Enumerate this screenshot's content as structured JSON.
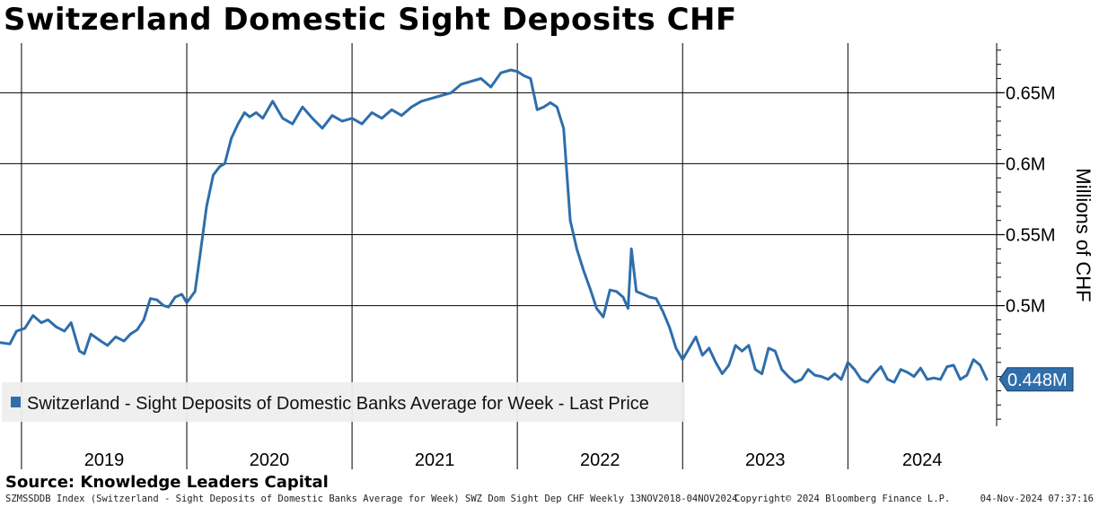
{
  "title": "Switzerland Domestic Sight Deposits CHF",
  "source": "Source: Knowledge Leaders Capital",
  "footer": {
    "left": "SZMSSDDB Index (Switzerland - Sight Deposits of Domestic Banks Average for Week) SWZ Dom Sight Dep CHF  Weekly 13NOV2018-04NOV2024",
    "middle": "Copyright© 2024 Bloomberg Finance L.P.",
    "right": "04-Nov-2024 07:37:16"
  },
  "colors": {
    "line": "#2f6eab",
    "legend_bg": "#eeeeee",
    "grid": "#000000",
    "last_price_bg": "#2f6eab"
  },
  "chart_data": {
    "type": "line",
    "ylabel": "Millions of CHF",
    "ylim": [
      0.415,
      0.685
    ],
    "xlim": [
      2018.87,
      2024.9
    ],
    "yticks": [
      0.5,
      0.55,
      0.6,
      0.65
    ],
    "ytick_labels": [
      "0.5M",
      "0.55M",
      "0.6M",
      "0.65M"
    ],
    "year_labels": [
      "2019",
      "2020",
      "2021",
      "2022",
      "2023",
      "2024"
    ],
    "year_starts": [
      2019,
      2020,
      2021,
      2022,
      2023,
      2024
    ],
    "grid": true,
    "legend_placement": "bottom-left",
    "last_price": 0.448,
    "last_price_label": "0.448M",
    "series": [
      {
        "name": "Switzerland - Sight Deposits of Domestic Banks Average for Week - Last Price",
        "x": [
          2018.87,
          2018.93,
          2018.97,
          2019.02,
          2019.07,
          2019.12,
          2019.16,
          2019.21,
          2019.26,
          2019.3,
          2019.35,
          2019.38,
          2019.42,
          2019.48,
          2019.52,
          2019.57,
          2019.62,
          2019.66,
          2019.7,
          2019.74,
          2019.78,
          2019.82,
          2019.86,
          2019.89,
          2019.93,
          2019.97,
          2020.0,
          2020.05,
          2020.08,
          2020.12,
          2020.16,
          2020.2,
          2020.23,
          2020.27,
          2020.31,
          2020.35,
          2020.38,
          2020.42,
          2020.46,
          2020.52,
          2020.58,
          2020.64,
          2020.7,
          2020.76,
          2020.82,
          2020.88,
          2020.94,
          2021.0,
          2021.06,
          2021.12,
          2021.18,
          2021.24,
          2021.3,
          2021.36,
          2021.42,
          2021.48,
          2021.54,
          2021.6,
          2021.66,
          2021.72,
          2021.78,
          2021.84,
          2021.9,
          2021.96,
          2022.0,
          2022.04,
          2022.08,
          2022.12,
          2022.16,
          2022.2,
          2022.24,
          2022.28,
          2022.32,
          2022.36,
          2022.4,
          2022.44,
          2022.48,
          2022.52,
          2022.56,
          2022.6,
          2022.64,
          2022.67,
          2022.69,
          2022.72,
          2022.76,
          2022.8,
          2022.84,
          2022.88,
          2022.92,
          2022.96,
          2023.0,
          2023.04,
          2023.08,
          2023.12,
          2023.16,
          2023.2,
          2023.24,
          2023.28,
          2023.32,
          2023.36,
          2023.4,
          2023.44,
          2023.48,
          2023.52,
          2023.56,
          2023.6,
          2023.64,
          2023.68,
          2023.72,
          2023.76,
          2023.8,
          2023.84,
          2023.88,
          2023.92,
          2023.96,
          2024.0,
          2024.04,
          2024.08,
          2024.12,
          2024.16,
          2024.2,
          2024.24,
          2024.28,
          2024.32,
          2024.36,
          2024.4,
          2024.44,
          2024.48,
          2024.52,
          2024.56,
          2024.6,
          2024.64,
          2024.68,
          2024.72,
          2024.76,
          2024.8,
          2024.84
        ],
        "values": [
          0.474,
          0.473,
          0.482,
          0.484,
          0.493,
          0.488,
          0.49,
          0.485,
          0.482,
          0.488,
          0.468,
          0.466,
          0.48,
          0.475,
          0.472,
          0.478,
          0.475,
          0.48,
          0.483,
          0.49,
          0.505,
          0.504,
          0.5,
          0.499,
          0.506,
          0.508,
          0.502,
          0.51,
          0.535,
          0.57,
          0.592,
          0.598,
          0.6,
          0.618,
          0.628,
          0.636,
          0.633,
          0.636,
          0.632,
          0.644,
          0.632,
          0.628,
          0.64,
          0.632,
          0.625,
          0.634,
          0.63,
          0.632,
          0.628,
          0.636,
          0.632,
          0.638,
          0.634,
          0.64,
          0.644,
          0.646,
          0.648,
          0.65,
          0.656,
          0.658,
          0.66,
          0.654,
          0.664,
          0.666,
          0.665,
          0.662,
          0.66,
          0.638,
          0.64,
          0.643,
          0.64,
          0.625,
          0.56,
          0.54,
          0.525,
          0.512,
          0.498,
          0.492,
          0.511,
          0.51,
          0.506,
          0.498,
          0.54,
          0.51,
          0.508,
          0.506,
          0.505,
          0.496,
          0.485,
          0.47,
          0.462,
          0.47,
          0.478,
          0.465,
          0.47,
          0.46,
          0.452,
          0.458,
          0.472,
          0.468,
          0.472,
          0.455,
          0.452,
          0.47,
          0.468,
          0.455,
          0.45,
          0.446,
          0.448,
          0.455,
          0.451,
          0.45,
          0.448,
          0.452,
          0.448,
          0.46,
          0.455,
          0.448,
          0.446,
          0.452,
          0.457,
          0.448,
          0.446,
          0.455,
          0.453,
          0.45,
          0.456,
          0.448,
          0.449,
          0.448,
          0.457,
          0.458,
          0.448,
          0.451,
          0.462,
          0.458,
          0.448
        ]
      }
    ]
  }
}
